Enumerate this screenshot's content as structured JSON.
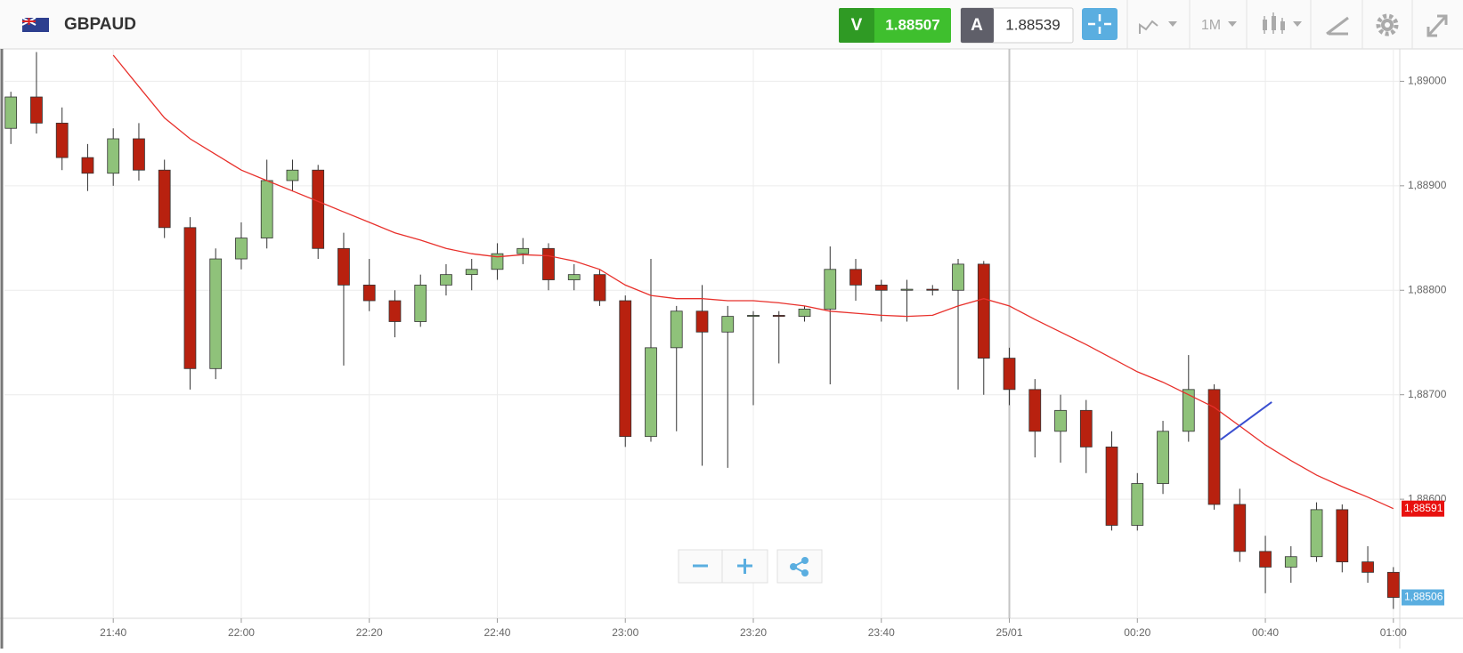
{
  "toolbar": {
    "symbol": "GBPAUD",
    "bid_label": "V",
    "bid": "1.88507",
    "ask_label": "A",
    "ask": "1.88539",
    "timeframe": "1M"
  },
  "chart_data": {
    "type": "candlestick",
    "x": [
      "21:24",
      "21:28",
      "21:32",
      "21:36",
      "21:40",
      "21:44",
      "21:48",
      "21:52",
      "21:56",
      "22:00",
      "22:04",
      "22:08",
      "22:12",
      "22:16",
      "22:20",
      "22:24",
      "22:28",
      "22:32",
      "22:36",
      "22:40",
      "22:44",
      "22:48",
      "22:52",
      "22:56",
      "23:00",
      "23:04",
      "23:08",
      "23:12",
      "23:16",
      "23:20",
      "23:24",
      "23:28",
      "23:32",
      "23:36",
      "23:40",
      "23:44",
      "23:48",
      "23:52",
      "23:56",
      "00:00",
      "00:04",
      "00:08",
      "00:12",
      "00:16",
      "00:20",
      "00:24",
      "00:28",
      "00:32",
      "00:36",
      "00:40",
      "00:44",
      "00:48",
      "00:52",
      "00:56",
      "01:00"
    ],
    "open": [
      1.88955,
      1.88985,
      1.8896,
      1.88927,
      1.88912,
      1.88945,
      1.88915,
      1.8886,
      1.88725,
      1.8883,
      1.8885,
      1.88905,
      1.88915,
      1.8884,
      1.88805,
      1.8879,
      1.8877,
      1.88805,
      1.88815,
      1.8882,
      1.88835,
      1.8884,
      1.8881,
      1.88815,
      1.8879,
      1.8866,
      1.88745,
      1.8878,
      1.8876,
      1.88775,
      1.88776,
      1.88775,
      1.88782,
      1.8882,
      1.88805,
      1.888,
      1.88801,
      1.888,
      1.88825,
      1.88735,
      1.88705,
      1.88665,
      1.88685,
      1.8865,
      1.88575,
      1.88615,
      1.88665,
      1.88705,
      1.88595,
      1.8855,
      1.88535,
      1.88545,
      1.8859,
      1.8854,
      1.8853
    ],
    "high": [
      1.8899,
      1.89028,
      1.88975,
      1.8894,
      1.88955,
      1.8896,
      1.88925,
      1.8887,
      1.8884,
      1.88865,
      1.88925,
      1.88925,
      1.8892,
      1.88855,
      1.8883,
      1.888,
      1.88815,
      1.88825,
      1.8883,
      1.88845,
      1.8885,
      1.88845,
      1.88825,
      1.8882,
      1.88795,
      1.8883,
      1.88785,
      1.88805,
      1.88785,
      1.8878,
      1.8878,
      1.88785,
      1.88842,
      1.8883,
      1.8881,
      1.8881,
      1.88805,
      1.8883,
      1.88828,
      1.88745,
      1.88715,
      1.887,
      1.88695,
      1.88665,
      1.88625,
      1.88675,
      1.88738,
      1.8871,
      1.8861,
      1.88565,
      1.88555,
      1.88597,
      1.88595,
      1.88555,
      1.88535
    ],
    "low": [
      1.8894,
      1.8895,
      1.88915,
      1.88895,
      1.889,
      1.88905,
      1.8885,
      1.88705,
      1.88715,
      1.8882,
      1.8884,
      1.88895,
      1.8883,
      1.88728,
      1.8878,
      1.88755,
      1.88765,
      1.88795,
      1.888,
      1.8881,
      1.88825,
      1.888,
      1.888,
      1.88785,
      1.8865,
      1.88655,
      1.88665,
      1.88632,
      1.8863,
      1.8869,
      1.8873,
      1.8877,
      1.8871,
      1.8879,
      1.8877,
      1.8877,
      1.88795,
      1.88705,
      1.887,
      1.8869,
      1.8864,
      1.88635,
      1.88625,
      1.8857,
      1.8857,
      1.88605,
      1.88655,
      1.8859,
      1.8854,
      1.8851,
      1.8852,
      1.8854,
      1.8853,
      1.8852,
      1.88495
    ],
    "close": [
      1.88985,
      1.8896,
      1.88927,
      1.88912,
      1.88945,
      1.88915,
      1.8886,
      1.88725,
      1.8883,
      1.8885,
      1.88905,
      1.88915,
      1.8884,
      1.88805,
      1.8879,
      1.8877,
      1.88805,
      1.88815,
      1.8882,
      1.88835,
      1.8884,
      1.8881,
      1.88815,
      1.8879,
      1.8866,
      1.88745,
      1.8878,
      1.8876,
      1.88775,
      1.88776,
      1.88775,
      1.88782,
      1.8882,
      1.88805,
      1.888,
      1.88801,
      1.888,
      1.88825,
      1.88735,
      1.88705,
      1.88665,
      1.88685,
      1.8865,
      1.88575,
      1.88615,
      1.88665,
      1.88705,
      1.88595,
      1.8855,
      1.88535,
      1.88545,
      1.8859,
      1.8854,
      1.8853,
      1.88506
    ],
    "up_color": "#8fc27a",
    "down_color": "#b8210f",
    "overlays": [
      {
        "type": "line",
        "color": "#e8302b",
        "values": [
          null,
          null,
          null,
          null,
          1.89025,
          1.88995,
          1.88965,
          1.88945,
          1.8893,
          1.88915,
          1.88905,
          1.88895,
          1.88885,
          1.88875,
          1.88865,
          1.88855,
          1.88848,
          1.8884,
          1.88835,
          1.88832,
          1.88834,
          1.88833,
          1.88828,
          1.8882,
          1.88805,
          1.88795,
          1.88792,
          1.88792,
          1.8879,
          1.8879,
          1.88788,
          1.88785,
          1.8878,
          1.88778,
          1.88776,
          1.88775,
          1.88776,
          1.88785,
          1.88792,
          1.88785,
          1.88772,
          1.8876,
          1.88748,
          1.88735,
          1.88722,
          1.88712,
          1.887,
          1.88688,
          1.8867,
          1.88652,
          1.88637,
          1.88623,
          1.88612,
          1.88602,
          1.88591
        ]
      }
    ],
    "trendline": {
      "x": [
        "00:33",
        "00:41"
      ],
      "values": [
        1.88657,
        1.88693
      ],
      "color": "#3a4fd0"
    },
    "price_tags": [
      {
        "value": 1.88591,
        "label": "1,88591",
        "color": "#e8110f"
      },
      {
        "value": 1.88506,
        "label": "1,88506",
        "color": "#5aaee0"
      }
    ],
    "xlim": [
      "21:23",
      "01:01"
    ],
    "xticks": [
      "21:40",
      "22:00",
      "22:20",
      "22:40",
      "23:00",
      "23:20",
      "23:40",
      {
        "value": "00:00",
        "label": "25/01"
      },
      "00:20",
      "00:40",
      "01:00"
    ],
    "ylim": [
      1.88486,
      1.89031
    ],
    "yticks": [
      {
        "value": 1.886,
        "label": "1,88600"
      },
      {
        "value": 1.887,
        "label": "1,88700"
      },
      {
        "value": 1.888,
        "label": "1,88800"
      },
      {
        "value": 1.889,
        "label": "1,88900"
      },
      {
        "value": 1.89,
        "label": "1,89000"
      }
    ],
    "grid": true
  }
}
